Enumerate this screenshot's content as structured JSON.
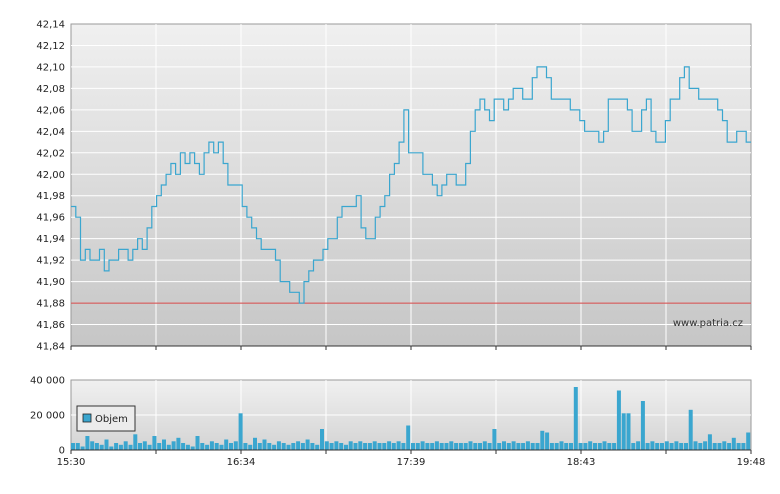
{
  "chart_data": [
    {
      "type": "line",
      "title": "",
      "xlabel": "",
      "ylabel": "",
      "ylim": [
        41.84,
        42.14
      ],
      "yticks": [
        "42,14",
        "42,12",
        "42,10",
        "42,08",
        "42,06",
        "42,04",
        "42,02",
        "42,00",
        "41,98",
        "41,96",
        "41,94",
        "41,92",
        "41,90",
        "41,88",
        "41,86",
        "41,84"
      ],
      "xticks": [
        "15:30",
        "16:34",
        "17:39",
        "18:43",
        "19:48"
      ],
      "xrange_minutes": [
        930,
        1188
      ],
      "reference_line": {
        "value": 41.88,
        "color": "#d04040"
      },
      "series_color": "#3aa6cf",
      "watermark": "www.patria.cz",
      "series": [
        {
          "values": [
            41.97,
            41.96,
            41.92,
            41.93,
            41.92,
            41.92,
            41.93,
            41.91,
            41.92,
            41.92,
            41.93,
            41.93,
            41.92,
            41.93,
            41.94,
            41.93,
            41.95,
            41.97,
            41.98,
            41.99,
            42.0,
            42.01,
            42.0,
            42.02,
            42.01,
            42.02,
            42.01,
            42.0,
            42.02,
            42.03,
            42.02,
            42.03,
            42.01,
            41.99,
            41.99,
            41.99,
            41.97,
            41.96,
            41.95,
            41.94,
            41.93,
            41.93,
            41.93,
            41.92,
            41.9,
            41.9,
            41.89,
            41.89,
            41.88,
            41.9,
            41.91,
            41.92,
            41.92,
            41.93,
            41.94,
            41.94,
            41.96,
            41.97,
            41.97,
            41.97,
            41.98,
            41.95,
            41.94,
            41.94,
            41.96,
            41.97,
            41.98,
            42.0,
            42.01,
            42.03,
            42.06,
            42.02,
            42.02,
            42.02,
            42.0,
            42.0,
            41.99,
            41.98,
            41.99,
            42.0,
            42.0,
            41.99,
            41.99,
            42.01,
            42.04,
            42.06,
            42.07,
            42.06,
            42.05,
            42.07,
            42.07,
            42.06,
            42.07,
            42.08,
            42.08,
            42.07,
            42.07,
            42.09,
            42.1,
            42.1,
            42.09,
            42.07,
            42.07,
            42.07,
            42.07,
            42.06,
            42.06,
            42.05,
            42.04,
            42.04,
            42.04,
            42.03,
            42.04,
            42.07,
            42.07,
            42.07,
            42.07,
            42.06,
            42.04,
            42.04,
            42.06,
            42.07,
            42.04,
            42.03,
            42.03,
            42.05,
            42.07,
            42.07,
            42.09,
            42.1,
            42.08,
            42.08,
            42.07,
            42.07,
            42.07,
            42.07,
            42.06,
            42.05,
            42.03,
            42.03,
            42.04,
            42.04,
            42.03,
            42.03
          ]
        }
      ]
    },
    {
      "type": "bar",
      "title": "",
      "ylim": [
        0,
        40000
      ],
      "yticks": [
        "40 000",
        "20 000",
        "0"
      ],
      "series_color": "#3aa6cf",
      "legend": {
        "label": "Objem",
        "placement": "top-left"
      },
      "series": [
        {
          "name": "Objem",
          "values": [
            4000,
            4000,
            2000,
            8000,
            5000,
            4000,
            3000,
            6000,
            2000,
            4000,
            3000,
            5000,
            3000,
            9000,
            4000,
            5000,
            3000,
            8000,
            4000,
            6000,
            3000,
            5000,
            7000,
            4000,
            3000,
            2000,
            8000,
            4000,
            3000,
            5000,
            4000,
            3000,
            6000,
            4000,
            5000,
            21000,
            4000,
            3000,
            7000,
            4000,
            6000,
            4000,
            3000,
            5000,
            4000,
            3000,
            4000,
            5000,
            4000,
            6000,
            4000,
            3000,
            12000,
            5000,
            4000,
            5000,
            4000,
            3000,
            5000,
            4000,
            5000,
            4000,
            4000,
            5000,
            4000,
            4000,
            5000,
            4000,
            5000,
            4000,
            14000,
            4000,
            4000,
            5000,
            4000,
            4000,
            5000,
            4000,
            4000,
            5000,
            4000,
            4000,
            4000,
            5000,
            4000,
            4000,
            5000,
            4000,
            12000,
            4000,
            5000,
            4000,
            5000,
            4000,
            4000,
            5000,
            4000,
            4000,
            11000,
            10000,
            4000,
            4000,
            5000,
            4000,
            4000,
            36000,
            4000,
            4000,
            5000,
            4000,
            4000,
            5000,
            4000,
            4000,
            34000,
            21000,
            21000,
            4000,
            5000,
            28000,
            4000,
            5000,
            4000,
            4000,
            5000,
            4000,
            5000,
            4000,
            4000,
            23000,
            5000,
            4000,
            5000,
            9000,
            4000,
            4000,
            5000,
            4000,
            7000,
            4000,
            4000,
            10000
          ]
        }
      ]
    }
  ]
}
